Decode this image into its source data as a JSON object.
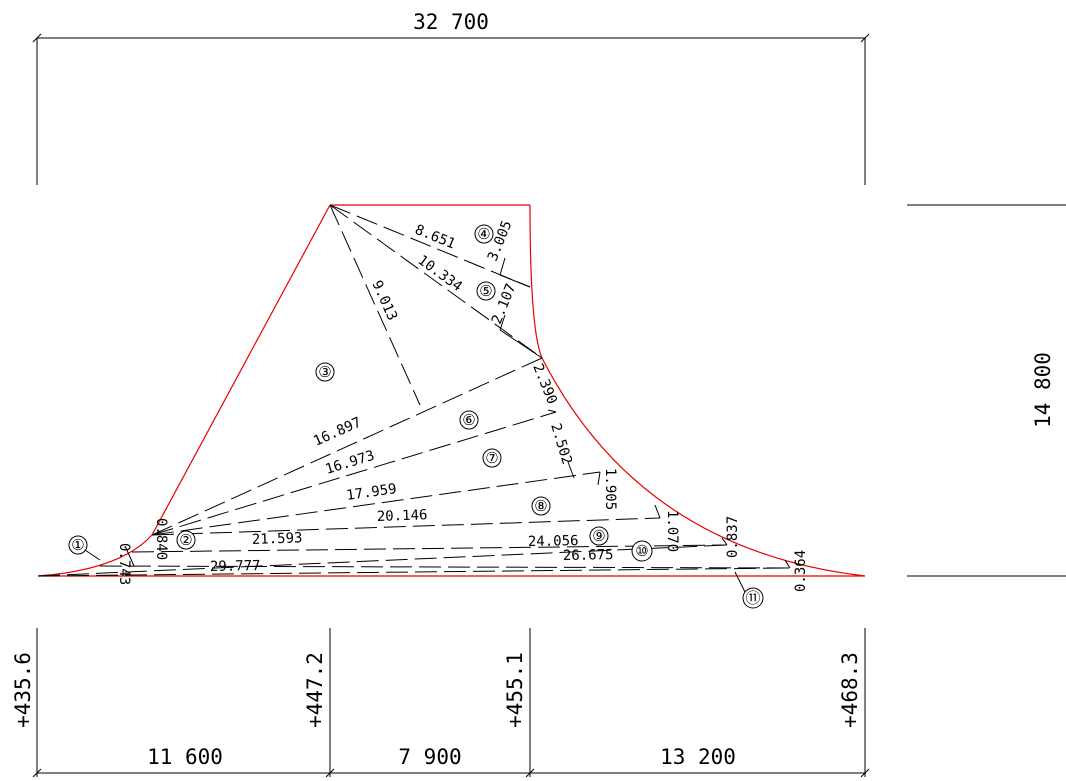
{
  "dimensions": {
    "overall_width": "32 700",
    "height": "14 800",
    "segment_1": "11 600",
    "segment_2": "7 900",
    "segment_3": "13 200"
  },
  "elevations": [
    "+435.6",
    "+447.2",
    "+455.1",
    "+468.3"
  ],
  "regions": [
    "①",
    "②",
    "③",
    "④",
    "⑤",
    "⑥",
    "⑦",
    "⑧",
    "⑨",
    "⑩",
    "⑪"
  ],
  "lengths": {
    "l_8651": "8.651",
    "l_10334": "10.334",
    "l_9013": "9.013",
    "l_16897": "16.897",
    "l_16973": "16.973",
    "l_17959": "17.959",
    "l_20146": "20.146",
    "l_21593": "21.593",
    "l_24056": "24.056",
    "l_26675": "26.675",
    "l_29777": "29.777"
  },
  "heights": {
    "h_3005": "3.005",
    "h_2107": "2.107",
    "h_2390": "2.390",
    "h_2502": "2.502",
    "h_1905": "1.905",
    "h_1070": "1.070",
    "h_0837": "0.837",
    "h_0364": "0.364",
    "h_0840": "0.840",
    "h_0743": "0.743"
  }
}
